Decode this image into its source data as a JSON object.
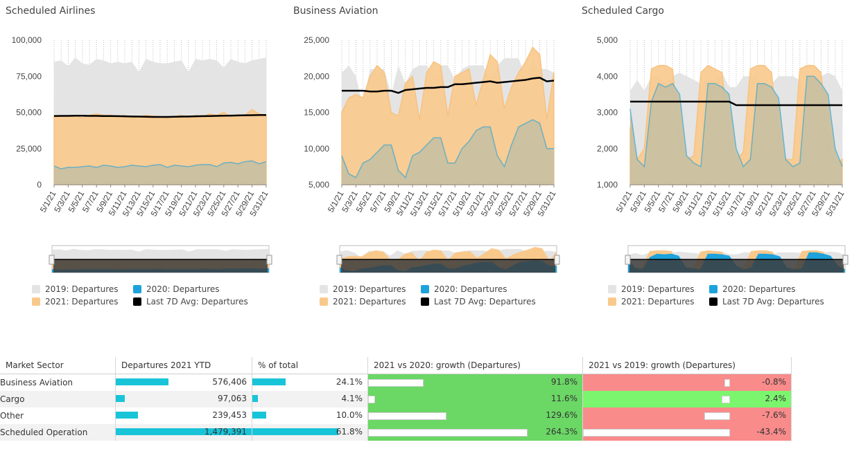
{
  "colors": {
    "y2019": "#e4e4e4",
    "y2020": "#1da2dc",
    "y2021": "#f9c98c",
    "avg": "#000000",
    "green": "#6bd765",
    "lightgreen": "#7cf56e",
    "red": "#f98b8b",
    "teal": "#18c4d8"
  },
  "legend": {
    "y2019": "2019: Departures",
    "y2020": "2020: Departures",
    "y2021": "2021: Departures",
    "avg": "Last 7D Avg: Departures"
  },
  "chart_data": [
    {
      "type": "area",
      "title": "Scheduled Airlines",
      "ylim": [
        0,
        100000
      ],
      "yticks": [
        "0",
        "25,000",
        "50,000",
        "75,000",
        "100,000"
      ],
      "yticks_values": [
        0,
        25000,
        50000,
        75000,
        100000
      ],
      "x": [
        "5/1/21",
        "5/2/21",
        "5/3/21",
        "5/4/21",
        "5/5/21",
        "5/6/21",
        "5/7/21",
        "5/8/21",
        "5/9/21",
        "5/10/21",
        "5/11/21",
        "5/12/21",
        "5/13/21",
        "5/14/21",
        "5/15/21",
        "5/16/21",
        "5/17/21",
        "5/18/21",
        "5/19/21",
        "5/20/21",
        "5/21/21",
        "5/22/21",
        "5/23/21",
        "5/24/21",
        "5/25/21",
        "5/26/21",
        "5/27/21",
        "5/28/21",
        "5/29/21",
        "5/30/21",
        "5/31/21"
      ],
      "xtick_labels": [
        "5/1/21",
        "5/3/21",
        "5/5/21",
        "5/7/21",
        "5/9/21",
        "5/11/21",
        "5/13/21",
        "5/15/21",
        "5/17/21",
        "5/19/21",
        "5/21/21",
        "5/23/21",
        "5/25/21",
        "5/27/21",
        "5/29/21",
        "5/31/21"
      ],
      "series": [
        {
          "name": "2019: Departures",
          "values": [
            85000,
            86000,
            82000,
            88000,
            84000,
            83000,
            87000,
            86000,
            84000,
            85000,
            84000,
            85000,
            78000,
            87000,
            85000,
            84000,
            84000,
            85000,
            86000,
            78000,
            87000,
            86000,
            87000,
            86000,
            81000,
            87000,
            85000,
            84000,
            86000,
            87000,
            88000
          ]
        },
        {
          "name": "2021: Departures",
          "values": [
            48000,
            47000,
            47500,
            48000,
            46000,
            48000,
            49000,
            48000,
            48000,
            47000,
            48000,
            46000,
            47000,
            48000,
            47500,
            47000,
            46000,
            47000,
            48000,
            46000,
            48000,
            47000,
            49000,
            48000,
            50000,
            47000,
            48500,
            48000,
            52000,
            49000,
            48000
          ]
        },
        {
          "name": "2020: Departures",
          "values": [
            13000,
            11000,
            12000,
            12000,
            12500,
            13000,
            12000,
            13500,
            13000,
            12000,
            12500,
            13500,
            13000,
            12500,
            13500,
            14000,
            12000,
            13500,
            13000,
            12500,
            13500,
            14000,
            14000,
            12500,
            15000,
            15500,
            14500,
            16000,
            16500,
            14500,
            16000
          ]
        },
        {
          "name": "Last 7D Avg: Departures",
          "values": [
            47500,
            47600,
            47600,
            47700,
            47700,
            47600,
            47600,
            47500,
            47500,
            47400,
            47300,
            47200,
            47100,
            47000,
            46900,
            46900,
            46900,
            47000,
            47100,
            47200,
            47300,
            47400,
            47500,
            47600,
            47700,
            47800,
            47900,
            48000,
            48100,
            48200,
            48200
          ]
        }
      ]
    },
    {
      "type": "area",
      "title": "Business Aviation",
      "ylim": [
        5000,
        25000
      ],
      "yticks": [
        "5,000",
        "10,000",
        "15,000",
        "20,000",
        "25,000"
      ],
      "yticks_values": [
        5000,
        10000,
        15000,
        20000,
        25000
      ],
      "x": [
        "5/1/21",
        "5/2/21",
        "5/3/21",
        "5/4/21",
        "5/5/21",
        "5/6/21",
        "5/7/21",
        "5/8/21",
        "5/9/21",
        "5/10/21",
        "5/11/21",
        "5/12/21",
        "5/13/21",
        "5/14/21",
        "5/15/21",
        "5/16/21",
        "5/17/21",
        "5/18/21",
        "5/19/21",
        "5/20/21",
        "5/21/21",
        "5/22/21",
        "5/23/21",
        "5/24/21",
        "5/25/21",
        "5/26/21",
        "5/27/21",
        "5/28/21",
        "5/29/21",
        "5/30/21",
        "5/31/21"
      ],
      "xtick_labels": [
        "5/1/21",
        "5/3/21",
        "5/5/21",
        "5/7/21",
        "5/9/21",
        "5/11/21",
        "5/13/21",
        "5/15/21",
        "5/17/21",
        "5/19/21",
        "5/21/21",
        "5/23/21",
        "5/25/21",
        "5/27/21",
        "5/29/21",
        "5/31/21"
      ],
      "series": [
        {
          "name": "2019: Departures",
          "values": [
            20500,
            21500,
            20000,
            16000,
            21000,
            21000,
            21000,
            17500,
            21500,
            19000,
            21000,
            21500,
            21500,
            20000,
            21500,
            21500,
            19500,
            21000,
            21500,
            21500,
            21500,
            19500,
            21500,
            22500,
            22500,
            22500,
            20000,
            22000,
            21000,
            21000,
            20500
          ]
        },
        {
          "name": "2021: Departures",
          "values": [
            15000,
            17000,
            17500,
            17000,
            20000,
            21500,
            20500,
            15000,
            14500,
            19000,
            20000,
            14000,
            20500,
            22000,
            21500,
            14500,
            20000,
            20500,
            21000,
            16000,
            19500,
            23000,
            22000,
            15500,
            18500,
            20500,
            22000,
            24000,
            23000,
            14000,
            20500
          ]
        },
        {
          "name": "2020: Departures",
          "values": [
            9000,
            6500,
            6000,
            8000,
            8500,
            9500,
            10500,
            10500,
            7000,
            6000,
            9000,
            9500,
            10500,
            11500,
            11500,
            8000,
            8000,
            10000,
            11000,
            12500,
            13000,
            13000,
            9000,
            7500,
            10500,
            13000,
            13500,
            14000,
            13500,
            10000,
            10000
          ]
        },
        {
          "name": "Last 7D Avg: Departures",
          "values": [
            18000,
            18000,
            18000,
            18000,
            17900,
            17900,
            18000,
            18000,
            17700,
            18100,
            18200,
            18300,
            18400,
            18400,
            18500,
            18500,
            18900,
            18900,
            19000,
            19100,
            19200,
            19300,
            19100,
            19200,
            19300,
            19400,
            19500,
            19700,
            19800,
            19300,
            19400
          ]
        }
      ]
    },
    {
      "type": "area",
      "title": "Scheduled Cargo",
      "ylim": [
        1000,
        5000
      ],
      "yticks": [
        "1,000",
        "2,000",
        "3,000",
        "4,000",
        "5,000"
      ],
      "yticks_values": [
        1000,
        2000,
        3000,
        4000,
        5000
      ],
      "x": [
        "5/1/21",
        "5/2/21",
        "5/3/21",
        "5/4/21",
        "5/5/21",
        "5/6/21",
        "5/7/21",
        "5/8/21",
        "5/9/21",
        "5/10/21",
        "5/11/21",
        "5/12/21",
        "5/13/21",
        "5/14/21",
        "5/15/21",
        "5/16/21",
        "5/17/21",
        "5/18/21",
        "5/19/21",
        "5/20/21",
        "5/21/21",
        "5/22/21",
        "5/23/21",
        "5/24/21",
        "5/25/21",
        "5/26/21",
        "5/27/21",
        "5/28/21",
        "5/29/21",
        "5/30/21",
        "5/31/21"
      ],
      "xtick_labels": [
        "5/1/21",
        "5/3/21",
        "5/5/21",
        "5/7/21",
        "5/9/21",
        "5/11/21",
        "5/13/21",
        "5/15/21",
        "5/17/21",
        "5/19/21",
        "5/21/21",
        "5/23/21",
        "5/25/21",
        "5/27/21",
        "5/29/21",
        "5/31/21"
      ],
      "series": [
        {
          "name": "2019: Departures",
          "values": [
            3600,
            3900,
            3600,
            4000,
            4000,
            3800,
            4000,
            4100,
            4000,
            3900,
            3800,
            3900,
            3900,
            4100,
            3700,
            3700,
            4000,
            4000,
            4000,
            3500,
            3800,
            4000,
            4000,
            4000,
            3900,
            3500,
            4000,
            4000,
            4100,
            4000,
            3600
          ]
        },
        {
          "name": "2021: Departures",
          "values": [
            2600,
            1700,
            2000,
            4200,
            4300,
            4300,
            4200,
            2200,
            1700,
            1800,
            4100,
            4300,
            4200,
            4100,
            2100,
            1700,
            1900,
            4200,
            4300,
            4300,
            4100,
            2100,
            1700,
            1700,
            4200,
            4300,
            4300,
            4100,
            1900,
            1600,
            1700
          ]
        },
        {
          "name": "2020: Departures",
          "values": [
            3100,
            1700,
            1500,
            3300,
            3800,
            3700,
            3800,
            3500,
            1800,
            1600,
            1500,
            3800,
            3800,
            3700,
            3500,
            2000,
            1500,
            1700,
            3800,
            3800,
            3700,
            3400,
            1700,
            1500,
            1600,
            4000,
            4000,
            3800,
            3500,
            2000,
            1500
          ]
        },
        {
          "name": "Last 7D Avg: Departures",
          "values": [
            3300,
            3300,
            3300,
            3300,
            3300,
            3300,
            3300,
            3300,
            3300,
            3300,
            3300,
            3300,
            3300,
            3300,
            3300,
            3200,
            3200,
            3200,
            3200,
            3200,
            3200,
            3200,
            3200,
            3200,
            3200,
            3200,
            3200,
            3200,
            3200,
            3200,
            3200
          ]
        }
      ]
    },
    {
      "type": "table",
      "headers": [
        "Market Sector",
        "Departures 2021 YTD",
        "% of total",
        "2021 vs 2020: growth (Departures)",
        "2021 vs 2019: growth (Departures)"
      ],
      "rows": [
        {
          "sector": "Business Aviation",
          "departures": "576,406",
          "departures_value": 576406,
          "pct": "24.1%",
          "pct_value": 24.1,
          "g2020": "91.8%",
          "g2020_value": 91.8,
          "g2019": "-0.8%",
          "g2019_value": -0.8
        },
        {
          "sector": "Cargo",
          "departures": "97,063",
          "departures_value": 97063,
          "pct": "4.1%",
          "pct_value": 4.1,
          "g2020": "11.6%",
          "g2020_value": 11.6,
          "g2019": "2.4%",
          "g2019_value": 2.4
        },
        {
          "sector": "Other",
          "departures": "239,453",
          "departures_value": 239453,
          "pct": "10.0%",
          "pct_value": 10.0,
          "g2020": "129.6%",
          "g2020_value": 129.6,
          "g2019": "-7.6%",
          "g2019_value": -7.6
        },
        {
          "sector": "Scheduled Operation",
          "departures": "1,479,391",
          "departures_value": 1479391,
          "pct": "61.8%",
          "pct_value": 61.8,
          "g2020": "264.3%",
          "g2020_value": 264.3,
          "g2019": "-43.4%",
          "g2019_value": -43.4
        }
      ]
    }
  ]
}
